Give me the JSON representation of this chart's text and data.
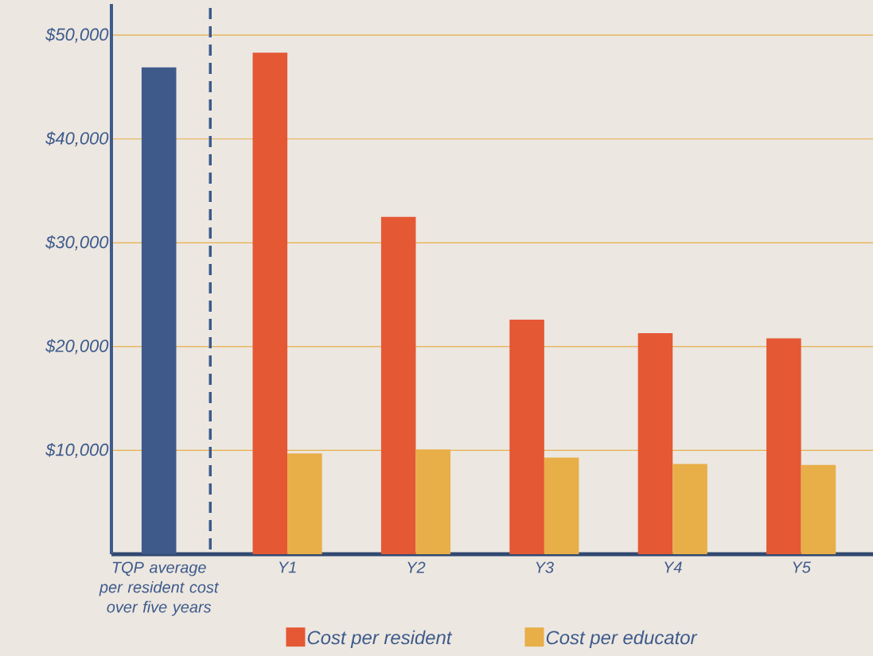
{
  "chart_data": {
    "type": "bar",
    "categories": [
      "TQP average per resident cost over five years",
      "Y1",
      "Y2",
      "Y3",
      "Y4",
      "Y5"
    ],
    "series": [
      {
        "color": "#3e5a8b",
        "values": [
          46900,
          null,
          null,
          null,
          null,
          null
        ]
      },
      {
        "name": "Cost per resident",
        "color": "#e45834",
        "values": [
          null,
          48300,
          32500,
          22600,
          21300,
          20800
        ]
      },
      {
        "name": "Cost per educator",
        "color": "#e8ae48",
        "values": [
          null,
          9700,
          10100,
          9300,
          8700,
          8600
        ]
      }
    ],
    "ylim": [
      0,
      53000
    ],
    "yticks": [
      {
        "value": 10000,
        "label": "$10,000"
      },
      {
        "value": 20000,
        "label": "$20,000"
      },
      {
        "value": 30000,
        "label": "$30,000"
      },
      {
        "value": 40000,
        "label": "$40,000"
      },
      {
        "value": 50000,
        "label": "$50,000"
      }
    ],
    "grid": "y",
    "legend": "bottom"
  }
}
